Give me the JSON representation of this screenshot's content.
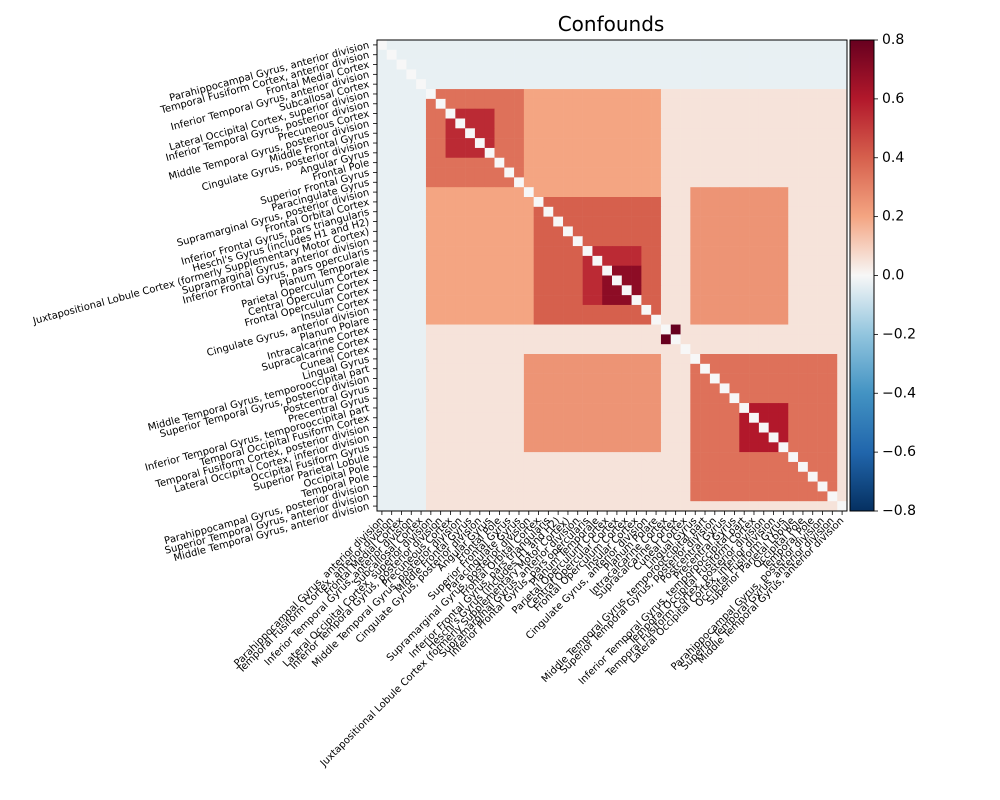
{
  "chart_data": {
    "type": "heatmap",
    "title": "Confounds",
    "colormap": "RdBu_r",
    "clim": [
      -0.8,
      0.8
    ],
    "colorbar_ticks": [
      "0.8",
      "0.6",
      "0.4",
      "0.2",
      "0.0",
      "−0.2",
      "−0.4",
      "−0.6",
      "−0.8"
    ],
    "colorbar_tick_values": [
      0.8,
      0.6,
      0.4,
      0.2,
      0.0,
      -0.2,
      -0.4,
      -0.6,
      -0.8
    ],
    "diagonal_value": 0.0,
    "labels": [
      "Parahippocampal Gyrus, anterior division",
      "Temporal Fusiform Cortex, anterior division",
      "Frontal Medial Cortex",
      "Inferior Temporal Gyrus, anterior division",
      "Subcallosal Cortex",
      "Lateral Occipital Cortex, superior division",
      "Inferior Temporal Gyrus, posterior division",
      "Precuneous Cortex",
      "Middle Temporal Gyrus, posterior division",
      "Middle Frontal Gyrus",
      "Cingulate Gyrus, posterior division",
      "Angular Gyrus",
      "Frontal Pole",
      "Superior Frontal Gyrus",
      "Paracingulate Gyrus",
      "Supramarginal Gyrus, posterior division",
      "Frontal Orbital Cortex",
      "Inferior Frontal Gyrus, pars triangularis",
      "Heschl's Gyrus (includes H1 and H2)",
      "Juxtapositional Lobule Cortex (formerly Supplementary Motor Cortex)",
      "Supramarginal Gyrus, anterior division",
      "Inferior Frontal Gyrus, pars opercularis",
      "Planum Temporale",
      "Parietal Operculum Cortex",
      "Central Opercular Cortex",
      "Frontal Operculum Cortex",
      "Insular Cortex",
      "Cingulate Gyrus, anterior division",
      "Planum Polare",
      "Intracalcarine Cortex",
      "Supracalcarine Cortex",
      "Cuneal Cortex",
      "Lingual Gyrus",
      "Middle Temporal Gyrus, temporooccipital part",
      "Superior Temporal Gyrus, posterior division",
      "Postcentral Gyrus",
      "Precentral Gyrus",
      "Inferior Temporal Gyrus, temporooccipital part",
      "Temporal Occipital Fusiform Cortex",
      "Temporal Fusiform Cortex, posterior division",
      "Lateral Occipital Cortex, inferior division",
      "Occipital Fusiform Gyrus",
      "Superior Parietal Lobule",
      "Occipital Pole",
      "Temporal Pole",
      "Parahippocampal Gyrus, posterior division",
      "Superior Temporal Gyrus, anterior division",
      "Middle Temporal Gyrus, anterior division"
    ],
    "block_values": [
      {
        "rows": [
          0,
          47
        ],
        "cols": [
          0,
          47
        ],
        "value": 0.05
      },
      {
        "rows": [
          0,
          4
        ],
        "cols": [
          0,
          47
        ],
        "value": -0.03
      },
      {
        "rows": [
          5,
          15
        ],
        "cols": [
          5,
          15
        ],
        "value": 0.35
      },
      {
        "rows": [
          7,
          11
        ],
        "cols": [
          7,
          11
        ],
        "value": 0.55
      },
      {
        "rows": [
          15,
          28
        ],
        "cols": [
          15,
          28
        ],
        "value": 0.4
      },
      {
        "rows": [
          21,
          26
        ],
        "cols": [
          21,
          26
        ],
        "value": 0.55
      },
      {
        "rows": [
          23,
          26
        ],
        "cols": [
          23,
          26
        ],
        "value": 0.7
      },
      {
        "rows": [
          29,
          30
        ],
        "cols": [
          29,
          30
        ],
        "value": 0.8
      },
      {
        "rows": [
          32,
          46
        ],
        "cols": [
          32,
          46
        ],
        "value": 0.35
      },
      {
        "rows": [
          37,
          41
        ],
        "cols": [
          37,
          41
        ],
        "value": 0.6
      },
      {
        "rows": [
          15,
          28
        ],
        "cols": [
          32,
          41
        ],
        "value": 0.25
      },
      {
        "rows": [
          5,
          15
        ],
        "cols": [
          15,
          28
        ],
        "value": 0.2
      }
    ],
    "grid": false
  }
}
